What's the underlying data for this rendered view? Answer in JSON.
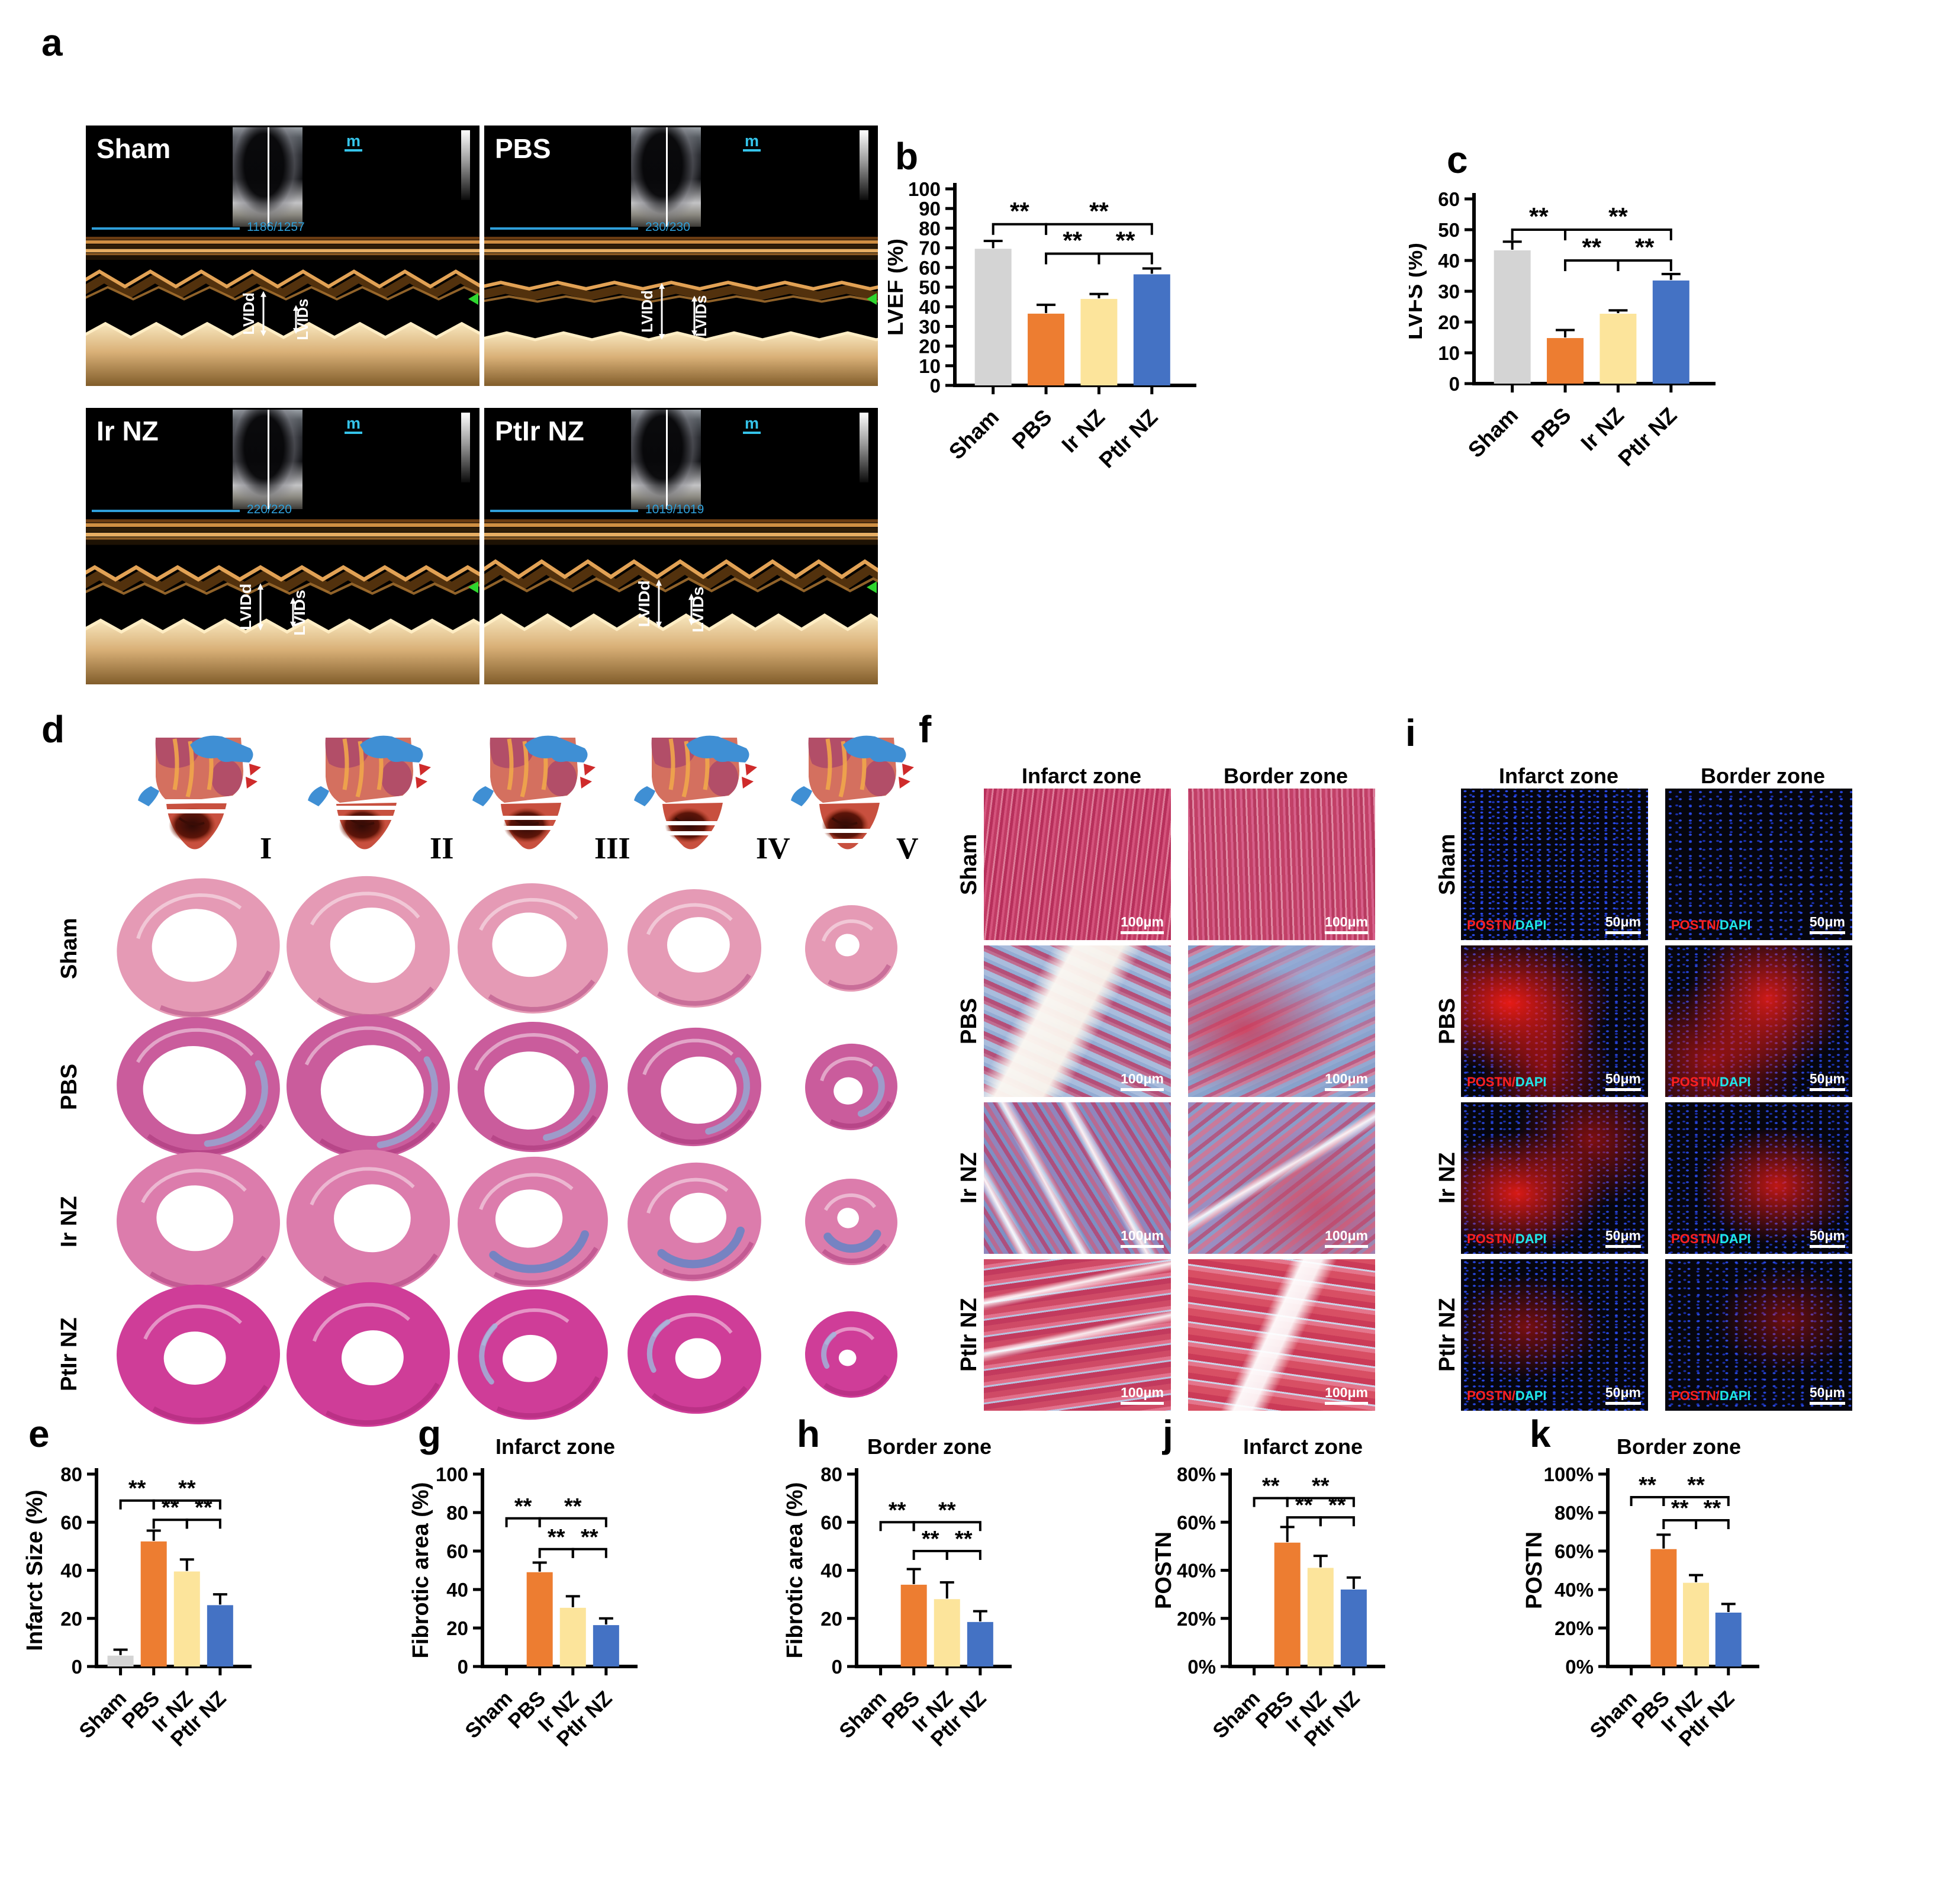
{
  "panels": {
    "a": {
      "letter": "a"
    },
    "b": {
      "letter": "b"
    },
    "c": {
      "letter": "c"
    },
    "d": {
      "letter": "d"
    },
    "e": {
      "letter": "e"
    },
    "f": {
      "letter": "f"
    },
    "g": {
      "letter": "g"
    },
    "h": {
      "letter": "h"
    },
    "i": {
      "letter": "i"
    },
    "j": {
      "letter": "j"
    },
    "k": {
      "letter": "k"
    }
  },
  "groups": [
    "Sham",
    "PBS",
    "Ir NZ",
    "PtIr NZ"
  ],
  "group_colors": [
    "#D4D4D4",
    "#ED7D31",
    "#FCE49B",
    "#4472C4"
  ],
  "panel_a": {
    "marker_label": "m",
    "lvidd_label": "LVIDd",
    "lvids_label": "LVIDs",
    "echo_panels": [
      {
        "label": "Sham",
        "frame_counter": "1186/1257"
      },
      {
        "label": "PBS",
        "frame_counter": "230/230"
      },
      {
        "label": "Ir NZ",
        "frame_counter": "220/220"
      },
      {
        "label": "PtIr NZ",
        "frame_counter": "1019/1019"
      }
    ]
  },
  "panel_d": {
    "slice_labels": [
      "I",
      "II",
      "III",
      "IV",
      "V"
    ],
    "row_labels": [
      "Sham",
      "PBS",
      "Ir NZ",
      "PtIr NZ"
    ]
  },
  "panel_f": {
    "col_headers": [
      "Infarct zone",
      "Border zone"
    ],
    "row_labels": [
      "Sham",
      "PBS",
      "Ir NZ",
      "PtIr NZ"
    ],
    "scale_bar_label": "100μm"
  },
  "panel_i": {
    "col_headers": [
      "Infarct zone",
      "Border zone"
    ],
    "row_labels": [
      "Sham",
      "PBS",
      "Ir NZ",
      "PtIr NZ"
    ],
    "scale_bar_label": "50μm",
    "stain_red": "POSTN",
    "stain_sep": "/",
    "stain_blue": "DAPI"
  },
  "chart_data": [
    {
      "id": "b",
      "type": "bar",
      "categories": [
        "Sham",
        "PBS",
        "Ir NZ",
        "PtIr NZ"
      ],
      "values": [
        69.5,
        36.5,
        44,
        56.5
      ],
      "errors": [
        4,
        4.5,
        2.5,
        3
      ],
      "title": "",
      "ylabel": "LVEF (%)",
      "ylim": [
        0,
        100
      ],
      "ytick": 10,
      "tick_suffix": "",
      "sig_label": "**",
      "sig": [
        [
          0,
          1,
          82
        ],
        [
          1,
          3,
          82
        ],
        [
          1,
          2,
          67
        ],
        [
          2,
          3,
          67
        ]
      ]
    },
    {
      "id": "c",
      "type": "bar",
      "categories": [
        "Sham",
        "PBS",
        "Ir NZ",
        "PtIr NZ"
      ],
      "values": [
        43.3,
        14.8,
        22.7,
        33.5
      ],
      "errors": [
        2.8,
        2.6,
        1.1,
        2.1
      ],
      "title": "",
      "ylabel": "LVFS (%)",
      "ylim": [
        0,
        60
      ],
      "ytick": 10,
      "tick_suffix": "",
      "sig_label": "**",
      "sig": [
        [
          0,
          1,
          50
        ],
        [
          1,
          3,
          50
        ],
        [
          1,
          2,
          40
        ],
        [
          2,
          3,
          40
        ]
      ]
    },
    {
      "id": "e",
      "type": "bar",
      "categories": [
        "Sham",
        "PBS",
        "Ir NZ",
        "PtIr NZ"
      ],
      "values": [
        4.5,
        52,
        39.5,
        25.5
      ],
      "errors": [
        2.5,
        4.5,
        5,
        4.5
      ],
      "title": "",
      "ylabel": "Infarct Size (%)",
      "ylim": [
        0,
        80
      ],
      "ytick": 20,
      "tick_suffix": "",
      "sig_label": "**",
      "sig": [
        [
          0,
          1,
          69
        ],
        [
          1,
          3,
          69
        ],
        [
          1,
          2,
          61
        ],
        [
          2,
          3,
          61
        ]
      ]
    },
    {
      "id": "g",
      "type": "bar",
      "categories": [
        "Sham",
        "PBS",
        "Ir NZ",
        "PtIr NZ"
      ],
      "values": [
        0,
        49,
        30.5,
        21.5
      ],
      "errors": [
        0,
        5,
        6,
        3.5
      ],
      "title": "Infarct zone",
      "ylabel": "Fibrotic area (%)",
      "ylim": [
        0,
        100
      ],
      "ytick": 20,
      "tick_suffix": "",
      "sig_label": "**",
      "sig": [
        [
          0,
          1,
          77
        ],
        [
          1,
          3,
          77
        ],
        [
          1,
          2,
          61
        ],
        [
          2,
          3,
          61
        ]
      ]
    },
    {
      "id": "h",
      "type": "bar",
      "categories": [
        "Sham",
        "PBS",
        "Ir NZ",
        "PtIr NZ"
      ],
      "values": [
        0,
        34,
        28,
        18.5
      ],
      "errors": [
        0,
        6.5,
        7,
        4.5
      ],
      "title": "Border zone",
      "ylabel": "Fibrotic area (%)",
      "ylim": [
        0,
        80
      ],
      "ytick": 20,
      "tick_suffix": "",
      "sig_label": "**",
      "sig": [
        [
          0,
          1,
          60
        ],
        [
          1,
          3,
          60
        ],
        [
          1,
          2,
          48
        ],
        [
          2,
          3,
          48
        ]
      ]
    },
    {
      "id": "j",
      "type": "bar",
      "categories": [
        "Sham",
        "PBS",
        "Ir NZ",
        "PtIr NZ"
      ],
      "values": [
        0,
        51.5,
        41,
        32
      ],
      "errors": [
        0,
        6.5,
        5,
        5
      ],
      "title": "Infarct zone",
      "ylabel": "POSTN",
      "ylim": [
        0,
        80
      ],
      "ytick": 20,
      "tick_suffix": "%",
      "sig_label": "**",
      "sig": [
        [
          0,
          1,
          70
        ],
        [
          1,
          3,
          70
        ],
        [
          1,
          2,
          62
        ],
        [
          2,
          3,
          62
        ]
      ]
    },
    {
      "id": "k",
      "type": "bar",
      "categories": [
        "Sham",
        "PBS",
        "Ir NZ",
        "PtIr NZ"
      ],
      "values": [
        0,
        61,
        43.5,
        28
      ],
      "errors": [
        0,
        7.5,
        4,
        4.5
      ],
      "title": "Border zone",
      "ylabel": "POSTN",
      "ylim": [
        0,
        100
      ],
      "ytick": 20,
      "tick_suffix": "%",
      "sig_label": "**",
      "sig": [
        [
          0,
          1,
          88
        ],
        [
          1,
          3,
          88
        ],
        [
          1,
          2,
          76
        ],
        [
          2,
          3,
          76
        ]
      ]
    }
  ]
}
